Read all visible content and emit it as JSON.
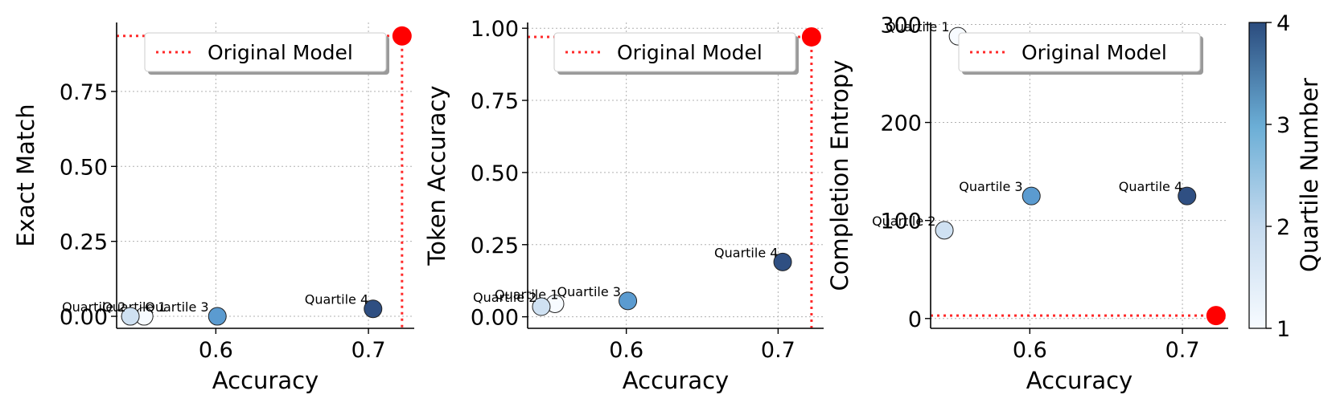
{
  "chart_data": [
    {
      "type": "scatter",
      "xlabel": "Accuracy",
      "ylabel": "Exact Match",
      "xlim": [
        0.535,
        0.73
      ],
      "ylim": [
        -0.04,
        0.98
      ],
      "xticks": [
        "0.6",
        "0.7"
      ],
      "xtick_values": [
        0.6,
        0.7
      ],
      "yticks": [
        "0.00",
        "0.25",
        "0.50",
        "0.75"
      ],
      "ytick_values": [
        0,
        0.25,
        0.5,
        0.75
      ],
      "grid": true,
      "legend": {
        "label": "Original Model",
        "placement": "top-right"
      },
      "reference": {
        "x": 0.722,
        "y": 0.935
      },
      "points": [
        {
          "label": "Quartile 1",
          "x": 0.553,
          "y": 0.0,
          "quartile": 1
        },
        {
          "label": "Quartile 2",
          "x": 0.544,
          "y": 0.0,
          "quartile": 2
        },
        {
          "label": "Quartile 3",
          "x": 0.601,
          "y": 0.0,
          "quartile": 3
        },
        {
          "label": "Quartile 4",
          "x": 0.703,
          "y": 0.025,
          "quartile": 4
        }
      ]
    },
    {
      "type": "scatter",
      "xlabel": "Accuracy",
      "ylabel": "Token Accuracy",
      "xlim": [
        0.535,
        0.73
      ],
      "ylim": [
        -0.04,
        1.02
      ],
      "xticks": [
        "0.6",
        "0.7"
      ],
      "xtick_values": [
        0.6,
        0.7
      ],
      "yticks": [
        "0.00",
        "0.25",
        "0.50",
        "0.75",
        "1.00"
      ],
      "ytick_values": [
        0,
        0.25,
        0.5,
        0.75,
        1.0
      ],
      "grid": true,
      "legend": {
        "label": "Original Model",
        "placement": "top-right"
      },
      "reference": {
        "x": 0.722,
        "y": 0.97
      },
      "points": [
        {
          "label": "Quartile 1",
          "x": 0.553,
          "y": 0.045,
          "quartile": 1
        },
        {
          "label": "Quartile 2",
          "x": 0.544,
          "y": 0.035,
          "quartile": 2
        },
        {
          "label": "Quartile 3",
          "x": 0.601,
          "y": 0.055,
          "quartile": 3
        },
        {
          "label": "Quartile 4",
          "x": 0.703,
          "y": 0.19,
          "quartile": 4
        }
      ]
    },
    {
      "type": "scatter",
      "xlabel": "Accuracy",
      "ylabel": "Completion Entropy",
      "xlim": [
        0.535,
        0.73
      ],
      "ylim": [
        -10,
        302
      ],
      "xticks": [
        "0.6",
        "0.7"
      ],
      "xtick_values": [
        0.6,
        0.7
      ],
      "yticks": [
        "0",
        "100",
        "200",
        "300"
      ],
      "ytick_values": [
        0,
        100,
        200,
        300
      ],
      "grid": true,
      "legend": {
        "label": "Original Model",
        "placement": "top-right"
      },
      "reference": {
        "x": 0.722,
        "y": 3
      },
      "points": [
        {
          "label": "Quartile 1",
          "x": 0.553,
          "y": 288,
          "quartile": 1
        },
        {
          "label": "Quartile 2",
          "x": 0.544,
          "y": 90,
          "quartile": 2
        },
        {
          "label": "Quartile 3",
          "x": 0.601,
          "y": 125,
          "quartile": 3
        },
        {
          "label": "Quartile 4",
          "x": 0.703,
          "y": 125,
          "quartile": 4
        }
      ]
    }
  ],
  "colorbar": {
    "label": "Quartile Number",
    "ticks": [
      "1",
      "2",
      "3",
      "4"
    ],
    "tick_values": [
      1,
      2,
      3,
      4
    ],
    "range": [
      1,
      4
    ],
    "colors": [
      "#f7fbff",
      "#c6dbef",
      "#6baed6",
      "#3a6aa8",
      "#2b4c7e"
    ]
  },
  "reference_color": "#ff0000",
  "point_colors": {
    "1": "#f7fbff",
    "2": "#cfe1f2",
    "3": "#5b9bd0",
    "4": "#2f4f82"
  }
}
